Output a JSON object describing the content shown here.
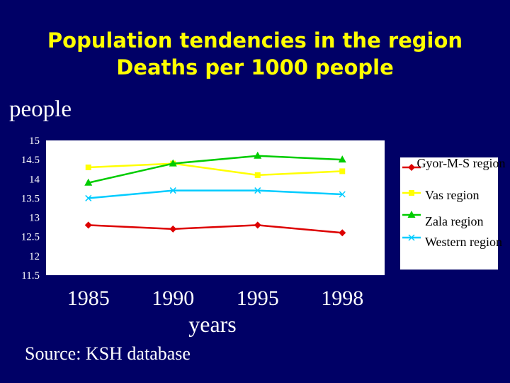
{
  "slide": {
    "title_line1": "Population tendencies in the region",
    "title_line2": "Deaths per 1000 people",
    "source": "Source: KSH database"
  },
  "colors": {
    "background": "#000066",
    "title": "#ffff00",
    "plot_area": "#ffffff",
    "text": "#ffffff"
  },
  "chart_data": {
    "type": "line",
    "title": "",
    "ylabel": "people",
    "xlabel": "years",
    "categories": [
      "1985",
      "1990",
      "1995",
      "1998"
    ],
    "ylim": [
      11.5,
      15
    ],
    "yticks": [
      "15",
      "14.5",
      "14",
      "13.5",
      "13",
      "12.5",
      "12",
      "11.5"
    ],
    "grid": false,
    "legend_position": "right",
    "series": [
      {
        "name": "Gyor-M-S region",
        "color": "#dd0000",
        "marker": "diamond",
        "values": [
          12.8,
          12.7,
          12.8,
          12.6
        ]
      },
      {
        "name": "Vas region",
        "color": "#ffff00",
        "marker": "square",
        "values": [
          14.3,
          14.4,
          14.1,
          14.2
        ]
      },
      {
        "name": "Zala region",
        "color": "#00cc00",
        "marker": "triangle",
        "values": [
          13.9,
          14.4,
          14.6,
          14.5
        ]
      },
      {
        "name": "Western region",
        "color": "#00ccff",
        "marker": "x",
        "values": [
          13.5,
          13.7,
          13.7,
          13.6
        ]
      }
    ]
  }
}
